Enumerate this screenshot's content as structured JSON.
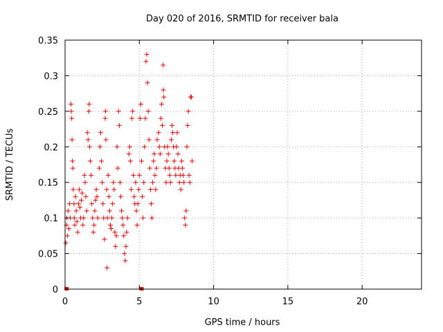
{
  "chart_data": {
    "type": "scatter",
    "title": "Day 020 of 2016, SRMTID for receiver bala",
    "xlabel": "GPS time / hours",
    "ylabel": "SRMTID / TECUs",
    "xlim": [
      0,
      24
    ],
    "ylim": [
      0,
      0.35
    ],
    "x_ticks": [
      0,
      5,
      10,
      15,
      20
    ],
    "x_tick_labels": [
      "0",
      "5",
      "10",
      "15",
      "20"
    ],
    "y_ticks": [
      0,
      0.05,
      0.1,
      0.15,
      0.2,
      0.25,
      0.3,
      0.35
    ],
    "y_tick_labels": [
      "0",
      "0.05",
      "0.1",
      "0.15",
      "0.2",
      "0.25",
      "0.3",
      "0.35"
    ],
    "grid": true,
    "marker": "+",
    "color": "#e00000",
    "zero_markers": [
      0.1,
      5.15
    ],
    "series": [
      {
        "name": "SRMTID",
        "points": [
          [
            0.05,
            0.065
          ],
          [
            0.1,
            0.09
          ],
          [
            0.12,
            0.1
          ],
          [
            0.15,
            0.075
          ],
          [
            0.2,
            0.11
          ],
          [
            0.25,
            0.085
          ],
          [
            0.3,
            0.12
          ],
          [
            0.35,
            0.1
          ],
          [
            0.4,
            0.26
          ],
          [
            0.42,
            0.25
          ],
          [
            0.45,
            0.24
          ],
          [
            0.47,
            0.21
          ],
          [
            0.5,
            0.18
          ],
          [
            0.52,
            0.17
          ],
          [
            0.55,
            0.14
          ],
          [
            0.6,
            0.12
          ],
          [
            0.62,
            0.1
          ],
          [
            0.65,
            0.09
          ],
          [
            0.7,
            0.13
          ],
          [
            0.75,
            0.11
          ],
          [
            0.8,
            0.095
          ],
          [
            0.85,
            0.08
          ],
          [
            0.9,
            0.12
          ],
          [
            0.95,
            0.14
          ],
          [
            1.0,
            0.115
          ],
          [
            1.05,
            0.1
          ],
          [
            1.1,
            0.125
          ],
          [
            1.15,
            0.135
          ],
          [
            1.2,
            0.09
          ],
          [
            1.25,
            0.1
          ],
          [
            1.3,
            0.16
          ],
          [
            1.35,
            0.15
          ],
          [
            1.4,
            0.13
          ],
          [
            1.45,
            0.11
          ],
          [
            1.5,
            0.22
          ],
          [
            1.55,
            0.21
          ],
          [
            1.6,
            0.25
          ],
          [
            1.62,
            0.26
          ],
          [
            1.65,
            0.2
          ],
          [
            1.7,
            0.18
          ],
          [
            1.75,
            0.16
          ],
          [
            1.8,
            0.12
          ],
          [
            1.85,
            0.1
          ],
          [
            1.9,
            0.08
          ],
          [
            1.95,
            0.09
          ],
          [
            2.0,
            0.11
          ],
          [
            2.05,
            0.125
          ],
          [
            2.1,
            0.14
          ],
          [
            2.15,
            0.13
          ],
          [
            2.2,
            0.1
          ],
          [
            2.3,
            0.17
          ],
          [
            2.35,
            0.2
          ],
          [
            2.4,
            0.22
          ],
          [
            2.45,
            0.18
          ],
          [
            2.5,
            0.15
          ],
          [
            2.55,
            0.12
          ],
          [
            2.6,
            0.1
          ],
          [
            2.65,
            0.07
          ],
          [
            2.7,
            0.24
          ],
          [
            2.72,
            0.25
          ],
          [
            2.75,
            0.21
          ],
          [
            2.8,
            0.14
          ],
          [
            2.82,
            0.03
          ],
          [
            2.85,
            0.1
          ],
          [
            2.9,
            0.16
          ],
          [
            2.95,
            0.13
          ],
          [
            3.0,
            0.11
          ],
          [
            3.05,
            0.09
          ],
          [
            3.1,
            0.085
          ],
          [
            3.15,
            0.1
          ],
          [
            3.2,
            0.12
          ],
          [
            3.25,
            0.15
          ],
          [
            3.3,
            0.14
          ],
          [
            3.35,
            0.08
          ],
          [
            3.4,
            0.06
          ],
          [
            3.45,
            0.075
          ],
          [
            3.5,
            0.2
          ],
          [
            3.55,
            0.17
          ],
          [
            3.6,
            0.25
          ],
          [
            3.65,
            0.23
          ],
          [
            3.7,
            0.15
          ],
          [
            3.75,
            0.13
          ],
          [
            3.8,
            0.11
          ],
          [
            3.85,
            0.1
          ],
          [
            3.9,
            0.09
          ],
          [
            3.95,
            0.075
          ],
          [
            4.0,
            0.05
          ],
          [
            4.05,
            0.04
          ],
          [
            4.1,
            0.06
          ],
          [
            4.15,
            0.08
          ],
          [
            4.2,
            0.1
          ],
          [
            4.3,
            0.19
          ],
          [
            4.35,
            0.2
          ],
          [
            4.4,
            0.18
          ],
          [
            4.45,
            0.14
          ],
          [
            4.5,
            0.24
          ],
          [
            4.55,
            0.25
          ],
          [
            4.6,
            0.16
          ],
          [
            4.65,
            0.13
          ],
          [
            4.7,
            0.12
          ],
          [
            4.75,
            0.15
          ],
          [
            4.8,
            0.11
          ],
          [
            4.85,
            0.09
          ],
          [
            4.9,
            0.12
          ],
          [
            4.95,
            0.14
          ],
          [
            5.0,
            0.16
          ],
          [
            5.05,
            0.24
          ],
          [
            5.1,
            0.26
          ],
          [
            5.15,
            0.18
          ],
          [
            5.2,
            0.13
          ],
          [
            5.25,
            0.1
          ],
          [
            5.3,
            0.15
          ],
          [
            5.35,
            0.2
          ],
          [
            5.4,
            0.24
          ],
          [
            5.45,
            0.32
          ],
          [
            5.5,
            0.33
          ],
          [
            5.55,
            0.29
          ],
          [
            5.6,
            0.25
          ],
          [
            5.65,
            0.21
          ],
          [
            5.7,
            0.17
          ],
          [
            5.75,
            0.14
          ],
          [
            5.8,
            0.12
          ],
          [
            5.85,
            0.1
          ],
          [
            5.9,
            0.15
          ],
          [
            5.95,
            0.18
          ],
          [
            6.0,
            0.19
          ],
          [
            6.05,
            0.16
          ],
          [
            6.1,
            0.14
          ],
          [
            6.15,
            0.17
          ],
          [
            6.2,
            0.21
          ],
          [
            6.3,
            0.22
          ],
          [
            6.35,
            0.2
          ],
          [
            6.4,
            0.19
          ],
          [
            6.45,
            0.24
          ],
          [
            6.5,
            0.26
          ],
          [
            6.55,
            0.23
          ],
          [
            6.6,
            0.315
          ],
          [
            6.62,
            0.28
          ],
          [
            6.65,
            0.27
          ],
          [
            6.7,
            0.2
          ],
          [
            6.75,
            0.17
          ],
          [
            6.8,
            0.15
          ],
          [
            6.85,
            0.18
          ],
          [
            6.9,
            0.2
          ],
          [
            6.95,
            0.19
          ],
          [
            7.0,
            0.17
          ],
          [
            7.05,
            0.16
          ],
          [
            7.1,
            0.15
          ],
          [
            7.15,
            0.21
          ],
          [
            7.2,
            0.23
          ],
          [
            7.25,
            0.22
          ],
          [
            7.3,
            0.2
          ],
          [
            7.35,
            0.18
          ],
          [
            7.4,
            0.17
          ],
          [
            7.45,
            0.16
          ],
          [
            7.5,
            0.2
          ],
          [
            7.55,
            0.22
          ],
          [
            7.6,
            0.19
          ],
          [
            7.65,
            0.17
          ],
          [
            7.7,
            0.15
          ],
          [
            7.75,
            0.16
          ],
          [
            7.8,
            0.14
          ],
          [
            7.85,
            0.18
          ],
          [
            7.9,
            0.17
          ],
          [
            7.95,
            0.16
          ],
          [
            8.0,
            0.15
          ],
          [
            8.05,
            0.1
          ],
          [
            8.1,
            0.09
          ],
          [
            8.15,
            0.11
          ],
          [
            8.2,
            0.2
          ],
          [
            8.25,
            0.23
          ],
          [
            8.3,
            0.25
          ],
          [
            8.35,
            0.16
          ],
          [
            8.4,
            0.15
          ],
          [
            8.45,
            0.27
          ],
          [
            8.5,
            0.27
          ],
          [
            8.55,
            0.18
          ]
        ]
      }
    ]
  }
}
